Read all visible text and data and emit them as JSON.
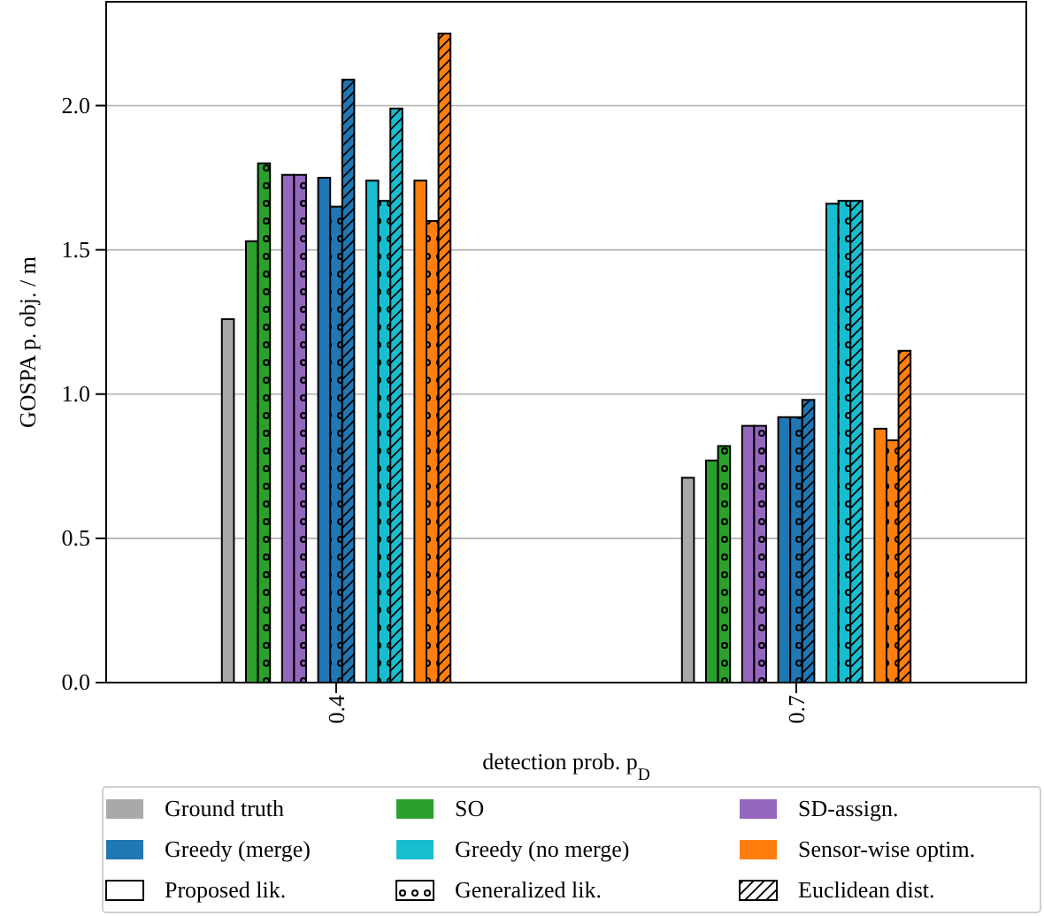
{
  "chart_data": {
    "type": "bar",
    "xlabel": "detection prob. p$_{D}$",
    "ylabel": "GOSPA p. obj. / m",
    "categories": [
      "0.4",
      "0.7"
    ],
    "ylim": [
      0,
      2.36
    ],
    "yticks": [
      {
        "value": 0,
        "label": "0.0"
      },
      {
        "value": 0.5,
        "label": "0.5"
      },
      {
        "value": 1,
        "label": "1.0"
      },
      {
        "value": 1.5,
        "label": "1.5"
      },
      {
        "value": 2,
        "label": "2.0"
      }
    ],
    "grid": "y",
    "legend": "bottom",
    "annotations": [
      "Proposed lik.",
      "Generalized lik.",
      "Euclidean dist."
    ],
    "series": [
      {
        "name": "Ground truth",
        "color": "#a9a9a9",
        "values": [
          1.26,
          0.71
        ]
      },
      {
        "name": "SO",
        "color": "#2ca02c",
        "values": [
          1.53,
          0.77
        ]
      },
      {
        "color": "#2ca02c",
        "values": [
          1.8,
          0.82
        ]
      },
      {
        "name": "SD-assign.",
        "color": "#9467bd",
        "values": [
          1.76,
          0.89
        ]
      },
      {
        "color": "#9467bd",
        "values": [
          1.76,
          0.89
        ]
      },
      {
        "name": "Greedy (merge)",
        "color": "#1f77b4",
        "values": [
          1.75,
          0.92
        ]
      },
      {
        "color": "#1f77b4",
        "values": [
          1.65,
          0.92
        ]
      },
      {
        "color": "#1f77b4",
        "values": [
          2.09,
          0.98
        ]
      },
      {
        "name": "Greedy (no merge)",
        "color": "#17becf",
        "values": [
          1.74,
          1.66
        ]
      },
      {
        "color": "#17becf",
        "values": [
          1.67,
          1.67
        ]
      },
      {
        "color": "#17becf",
        "values": [
          1.99,
          1.67
        ]
      },
      {
        "name": "Sensor-wise optim.",
        "color": "#ff7f0e",
        "values": [
          1.74,
          0.88
        ]
      },
      {
        "color": "#ff7f0e",
        "values": [
          1.6,
          0.84
        ]
      },
      {
        "color": "#ff7f0e",
        "values": [
          2.25,
          1.15
        ]
      }
    ]
  }
}
